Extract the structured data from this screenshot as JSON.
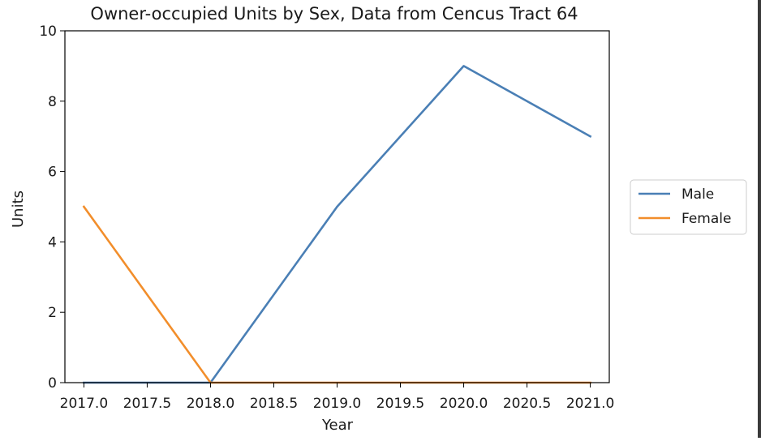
{
  "chart_data": {
    "type": "line",
    "title": "Owner-occupied Units by Sex, Data from Cencus Tract 64",
    "xlabel": "Year",
    "ylabel": "Units",
    "xlim": [
      2016.85,
      2021.15
    ],
    "ylim": [
      0,
      10
    ],
    "x_ticks": [
      "2017.0",
      "2017.5",
      "2018.0",
      "2018.5",
      "2019.0",
      "2019.5",
      "2020.0",
      "2020.5",
      "2021.0"
    ],
    "y_ticks": [
      "0",
      "2",
      "4",
      "6",
      "8",
      "10"
    ],
    "x": [
      2017,
      2018,
      2019,
      2020,
      2021
    ],
    "series": [
      {
        "name": "Male",
        "values": [
          0,
          0,
          5,
          9,
          7
        ],
        "color": "#4a7fb5"
      },
      {
        "name": "Female",
        "values": [
          5,
          0,
          0,
          0,
          0
        ],
        "color": "#f28e2b"
      }
    ],
    "legend": {
      "placement": "right",
      "entries": [
        "Male",
        "Female"
      ]
    },
    "grid": false
  }
}
